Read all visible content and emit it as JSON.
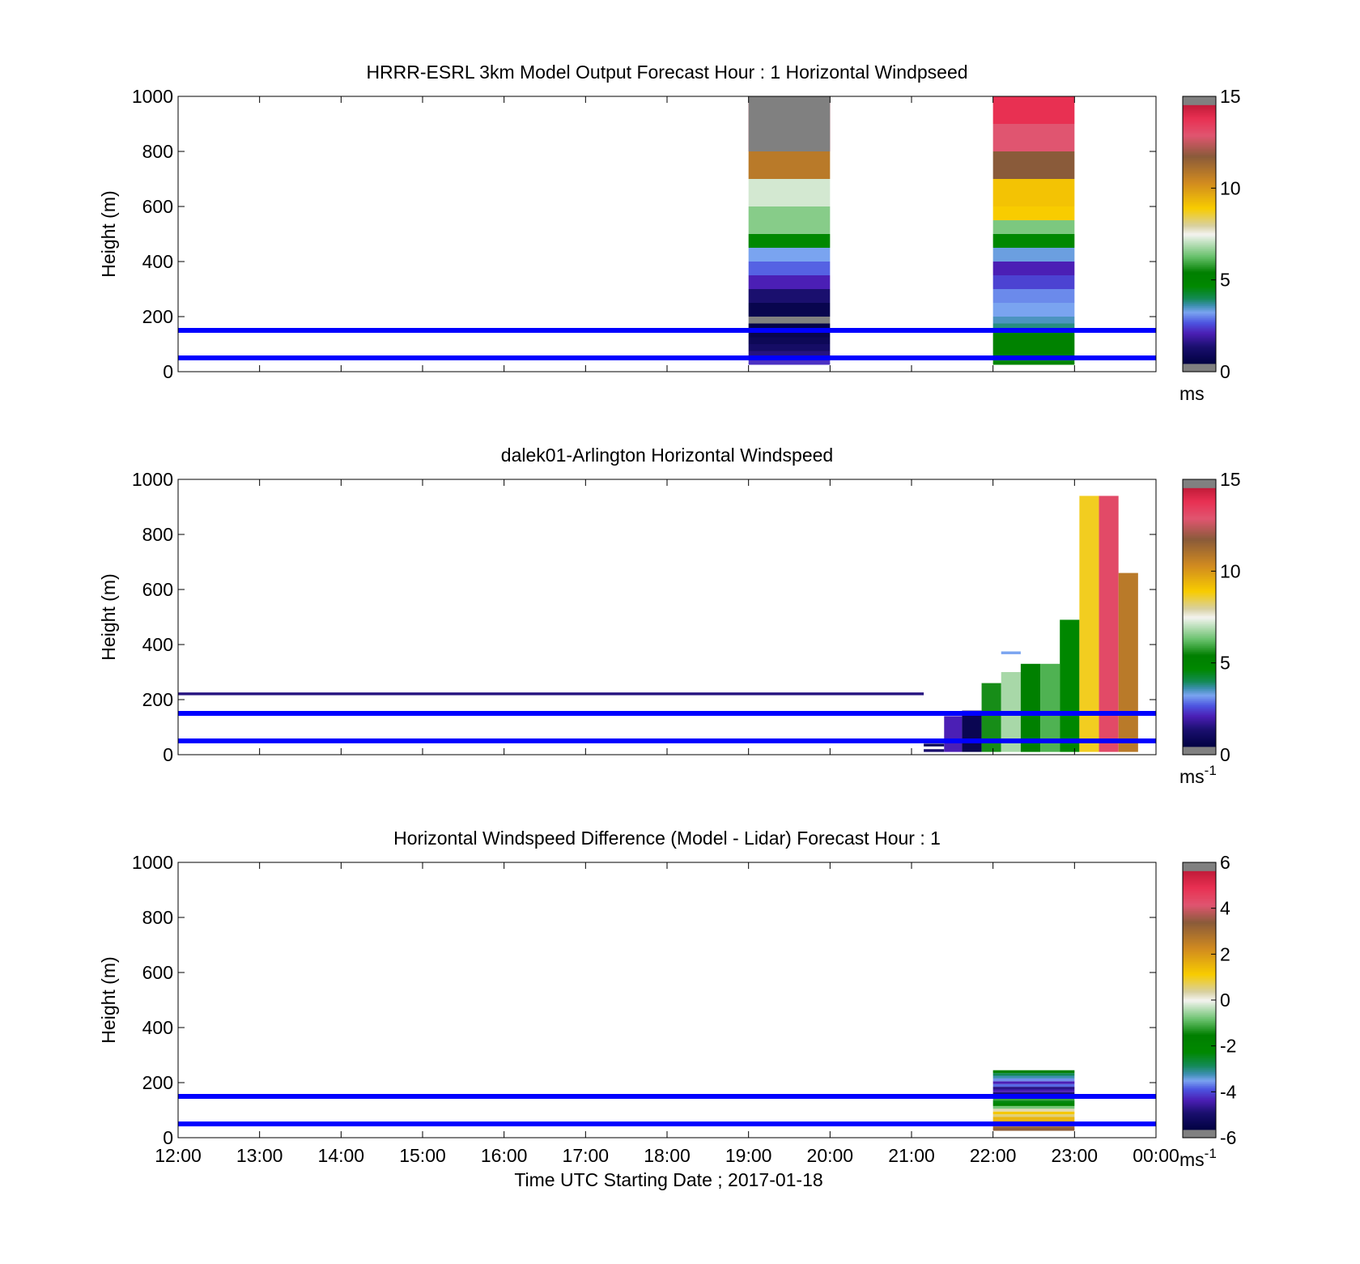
{
  "figure": {
    "background": "#ffffff",
    "reference_line_color": "#0000ff",
    "reference_lines_m": [
      50,
      150
    ]
  },
  "chart_data": [
    {
      "type": "heatmap",
      "title": "HRRR-ESRL 3km Model Output   Forecast Hour : 1 Horizontal Windpseed",
      "ylabel": "Height (m)",
      "xlabel": "",
      "x_tick_labels_visible": false,
      "xlim_hours": [
        12,
        24
      ],
      "ylim": [
        0,
        1000
      ],
      "yticks": [
        0,
        200,
        400,
        600,
        800,
        1000
      ],
      "colorbar": {
        "range": [
          0,
          15
        ],
        "ticks": [
          0,
          5,
          10,
          15
        ],
        "unit": "ms",
        "unit_superscript": "",
        "end_color": "#808080",
        "stops": [
          [
            0,
            "#000040"
          ],
          [
            1,
            "#1a0f6e"
          ],
          [
            1.8,
            "#4b1fb5"
          ],
          [
            2.4,
            "#4d55e0"
          ],
          [
            3,
            "#7aa4f0"
          ],
          [
            3.4,
            "#3d8fb0"
          ],
          [
            3.8,
            "#138a55"
          ],
          [
            4.5,
            "#008800"
          ],
          [
            5.3,
            "#007f00"
          ],
          [
            6.2,
            "#66c06a"
          ],
          [
            7.5,
            "#f4f4f0"
          ],
          [
            8,
            "#d8d0a0"
          ],
          [
            9,
            "#f8cc00"
          ],
          [
            10.5,
            "#d08a20"
          ],
          [
            12,
            "#8a5b3a"
          ],
          [
            13.2,
            "#e05570"
          ],
          [
            14.2,
            "#e83052"
          ],
          [
            15,
            "#c01a38"
          ]
        ]
      },
      "columns": [
        {
          "start_hour": 19.0,
          "end_hour": 20.0,
          "bins": [
            {
              "y0": 25,
              "y1": 50,
              "value": 2.0
            },
            {
              "y0": 50,
              "y1": 75,
              "value": 1.2
            },
            {
              "y0": 75,
              "y1": 100,
              "value": 0.8
            },
            {
              "y0": 100,
              "y1": 125,
              "value": 0.5
            },
            {
              "y0": 125,
              "y1": 150,
              "value": 0.3
            },
            {
              "y0": 150,
              "y1": 175,
              "value": 0.2
            },
            {
              "y0": 175,
              "y1": 200,
              "value": 15.5
            },
            {
              "y0": 200,
              "y1": 250,
              "value": 0.3
            },
            {
              "y0": 250,
              "y1": 300,
              "value": 1.0
            },
            {
              "y0": 300,
              "y1": 350,
              "value": 1.8
            },
            {
              "y0": 350,
              "y1": 400,
              "value": 2.5
            },
            {
              "y0": 400,
              "y1": 450,
              "value": 3.0
            },
            {
              "y0": 450,
              "y1": 500,
              "value": 4.5
            },
            {
              "y0": 500,
              "y1": 600,
              "value": 6.5
            },
            {
              "y0": 600,
              "y1": 700,
              "value": 7.2
            },
            {
              "y0": 700,
              "y1": 800,
              "value": 11.0
            },
            {
              "y0": 800,
              "y1": 1000,
              "value": 14.2
            },
            {
              "y0": 800,
              "y1": 1000,
              "value": 16.0
            }
          ]
        },
        {
          "start_hour": 22.0,
          "end_hour": 23.0,
          "bins": [
            {
              "y0": 25,
              "y1": 40,
              "value": 4.8
            },
            {
              "y0": 40,
              "y1": 150,
              "value": 5.0
            },
            {
              "y0": 150,
              "y1": 175,
              "value": 3.6
            },
            {
              "y0": 175,
              "y1": 200,
              "value": 3.3
            },
            {
              "y0": 200,
              "y1": 250,
              "value": 3.0
            },
            {
              "y0": 250,
              "y1": 300,
              "value": 2.8
            },
            {
              "y0": 300,
              "y1": 350,
              "value": 2.2
            },
            {
              "y0": 350,
              "y1": 400,
              "value": 1.8
            },
            {
              "y0": 400,
              "y1": 450,
              "value": 3.1
            },
            {
              "y0": 450,
              "y1": 500,
              "value": 4.5
            },
            {
              "y0": 500,
              "y1": 550,
              "value": 6.4
            },
            {
              "y0": 550,
              "y1": 600,
              "value": 9.0
            },
            {
              "y0": 600,
              "y1": 700,
              "value": 9.2
            },
            {
              "y0": 700,
              "y1": 800,
              "value": 12.0
            },
            {
              "y0": 800,
              "y1": 900,
              "value": 13.2
            },
            {
              "y0": 900,
              "y1": 1000,
              "value": 14.2
            }
          ]
        }
      ],
      "single_color_bins": []
    },
    {
      "type": "heatmap",
      "title": "dalek01-Arlington  Horizontal Windspeed",
      "ylabel": "Height (m)",
      "xlabel": "",
      "x_tick_labels_visible": false,
      "xlim_hours": [
        12,
        24
      ],
      "ylim": [
        0,
        1000
      ],
      "yticks": [
        0,
        200,
        400,
        600,
        800,
        1000
      ],
      "colorbar": {
        "range": [
          0,
          15
        ],
        "ticks": [
          0,
          5,
          10,
          15
        ],
        "unit": "ms",
        "unit_superscript": "-1",
        "end_color": "#808080",
        "stops": [
          [
            0,
            "#000040"
          ],
          [
            1,
            "#1a0f6e"
          ],
          [
            1.8,
            "#4b1fb5"
          ],
          [
            2.4,
            "#4d55e0"
          ],
          [
            3,
            "#7aa4f0"
          ],
          [
            3.4,
            "#3d8fb0"
          ],
          [
            3.8,
            "#138a55"
          ],
          [
            4.5,
            "#008800"
          ],
          [
            5.3,
            "#007f00"
          ],
          [
            6.2,
            "#66c06a"
          ],
          [
            7.5,
            "#f4f4f0"
          ],
          [
            8,
            "#d8d0a0"
          ],
          [
            9,
            "#f8cc00"
          ],
          [
            10.5,
            "#d08a20"
          ],
          [
            12,
            "#8a5b3a"
          ],
          [
            13.2,
            "#e05570"
          ],
          [
            14.2,
            "#e83052"
          ],
          [
            15,
            "#c01a38"
          ]
        ]
      },
      "columns": [],
      "single_color_bins": [
        {
          "start_hour": 12.0,
          "end_hour": 21.15,
          "y0": 216,
          "y1": 226,
          "value": 1.2
        },
        {
          "start_hour": 21.15,
          "end_hour": 21.4,
          "y0": 30,
          "y1": 40,
          "value": 0.5
        },
        {
          "start_hour": 21.15,
          "end_hour": 21.4,
          "y0": 10,
          "y1": 20,
          "value": 1.0
        },
        {
          "start_hour": 21.4,
          "end_hour": 21.62,
          "y0": 10,
          "y1": 140,
          "value": 1.8
        },
        {
          "start_hour": 21.62,
          "end_hour": 21.86,
          "y0": 10,
          "y1": 160,
          "value": 0.4
        },
        {
          "start_hour": 21.86,
          "end_hour": 22.1,
          "y0": 10,
          "y1": 260,
          "value": 5.5
        },
        {
          "start_hour": 22.1,
          "end_hour": 22.34,
          "y0": 10,
          "y1": 300,
          "value": 6.8
        },
        {
          "start_hour": 22.1,
          "end_hour": 22.34,
          "y0": 365,
          "y1": 375,
          "value": 3.0
        },
        {
          "start_hour": 22.34,
          "end_hour": 22.58,
          "y0": 10,
          "y1": 330,
          "value": 5.2
        },
        {
          "start_hour": 22.58,
          "end_hour": 22.82,
          "y0": 10,
          "y1": 330,
          "value": 6.0
        },
        {
          "start_hour": 22.82,
          "end_hour": 23.06,
          "y0": 10,
          "y1": 490,
          "value": 4.6
        },
        {
          "start_hour": 23.06,
          "end_hour": 23.3,
          "y0": 10,
          "y1": 940,
          "value": 8.8
        },
        {
          "start_hour": 23.3,
          "end_hour": 23.54,
          "y0": 10,
          "y1": 940,
          "value": 13.5
        },
        {
          "start_hour": 23.54,
          "end_hour": 23.78,
          "y0": 10,
          "y1": 660,
          "value": 11.0
        }
      ]
    },
    {
      "type": "heatmap",
      "title": "Horizontal Windspeed Difference (Model - Lidar) Forecast Hour : 1",
      "ylabel": "Height (m)",
      "xlabel": "Time UTC  Starting Date ; 2017-01-18",
      "x_tick_labels_visible": true,
      "xticks": [
        "12:00",
        "13:00",
        "14:00",
        "15:00",
        "16:00",
        "17:00",
        "18:00",
        "19:00",
        "20:00",
        "21:00",
        "22:00",
        "23:00",
        "00:00"
      ],
      "xlim_hours": [
        12,
        24
      ],
      "ylim": [
        0,
        1000
      ],
      "yticks": [
        0,
        200,
        400,
        600,
        800,
        1000
      ],
      "colorbar": {
        "range": [
          -6,
          6
        ],
        "ticks": [
          -6,
          -4,
          -2,
          0,
          2,
          4,
          6
        ],
        "unit": "ms",
        "unit_superscript": "-1",
        "end_color": "#808080",
        "stops": [
          [
            -6,
            "#000040"
          ],
          [
            -5.2,
            "#1a0f6e"
          ],
          [
            -4.6,
            "#4b1fb5"
          ],
          [
            -4.1,
            "#4d55e0"
          ],
          [
            -3.7,
            "#7aa4f0"
          ],
          [
            -3.4,
            "#3d8fb0"
          ],
          [
            -3.0,
            "#138a55"
          ],
          [
            -2.4,
            "#008800"
          ],
          [
            -1.6,
            "#007f00"
          ],
          [
            -0.9,
            "#66c06a"
          ],
          [
            0,
            "#f4f4f0"
          ],
          [
            0.4,
            "#d8d0a0"
          ],
          [
            1.2,
            "#f8cc00"
          ],
          [
            2.4,
            "#d08a20"
          ],
          [
            3.6,
            "#8a5b3a"
          ],
          [
            4.4,
            "#e05570"
          ],
          [
            5.2,
            "#e83052"
          ],
          [
            6,
            "#c01a38"
          ]
        ]
      },
      "columns": [
        {
          "start_hour": 22.0,
          "end_hour": 23.0,
          "bins": [
            {
              "y0": 25,
              "y1": 40,
              "value": 3.5
            },
            {
              "y0": 40,
              "y1": 55,
              "value": 2.4
            },
            {
              "y0": 55,
              "y1": 65,
              "value": 1.8
            },
            {
              "y0": 65,
              "y1": 75,
              "value": 1.6
            },
            {
              "y0": 75,
              "y1": 85,
              "value": 0.6
            },
            {
              "y0": 85,
              "y1": 95,
              "value": 1.3
            },
            {
              "y0": 95,
              "y1": 105,
              "value": 0.3
            },
            {
              "y0": 105,
              "y1": 115,
              "value": -0.8
            },
            {
              "y0": 115,
              "y1": 125,
              "value": -2.0
            },
            {
              "y0": 125,
              "y1": 135,
              "value": -2.5
            },
            {
              "y0": 135,
              "y1": 145,
              "value": -1.2
            },
            {
              "y0": 145,
              "y1": 155,
              "value": -0.6
            },
            {
              "y0": 155,
              "y1": 165,
              "value": -5.2
            },
            {
              "y0": 165,
              "y1": 175,
              "value": -4.6
            },
            {
              "y0": 175,
              "y1": 185,
              "value": -5.0
            },
            {
              "y0": 185,
              "y1": 195,
              "value": -4.0
            },
            {
              "y0": 195,
              "y1": 205,
              "value": -4.6
            },
            {
              "y0": 205,
              "y1": 215,
              "value": -3.8
            },
            {
              "y0": 215,
              "y1": 225,
              "value": -3.4
            },
            {
              "y0": 225,
              "y1": 235,
              "value": -3.0
            },
            {
              "y0": 235,
              "y1": 245,
              "value": -1.8
            }
          ]
        }
      ],
      "single_color_bins": []
    }
  ]
}
